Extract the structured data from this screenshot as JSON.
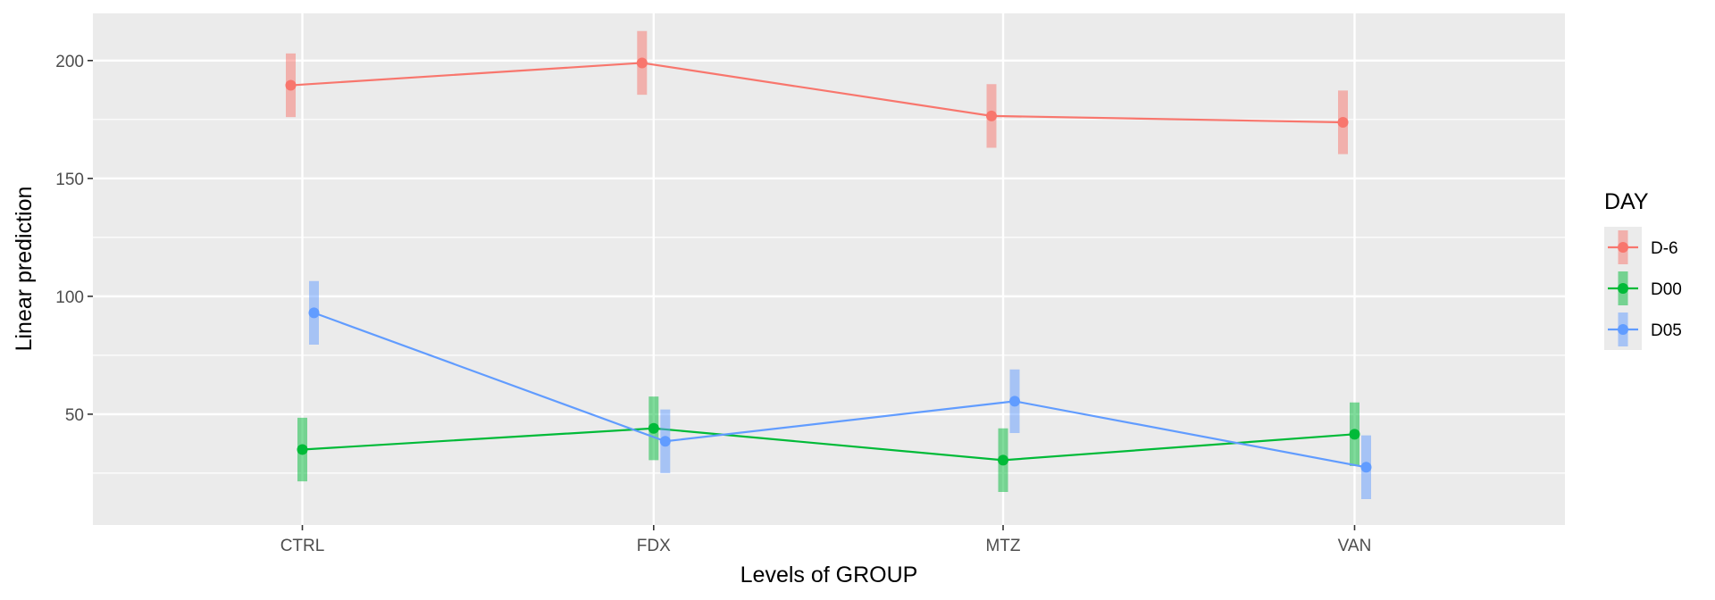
{
  "chart_data": {
    "type": "line",
    "xlabel": "Levels of GROUP",
    "ylabel": "Linear prediction",
    "categories": [
      "CTRL",
      "FDX",
      "MTZ",
      "VAN"
    ],
    "ylim": [
      3,
      220
    ],
    "yticks": [
      50,
      100,
      150,
      200
    ],
    "grid": true,
    "legend": {
      "title": "DAY",
      "position": "right"
    },
    "series": [
      {
        "name": "D-6",
        "color": "#F8766D",
        "values": [
          189.5,
          199,
          176.5,
          173.8
        ],
        "lower": [
          176,
          185.5,
          163,
          160.3
        ],
        "upper": [
          203,
          212.5,
          190,
          187.3
        ]
      },
      {
        "name": "D00",
        "color": "#00BA38",
        "values": [
          35,
          44,
          30.5,
          41.5
        ],
        "lower": [
          21.5,
          30.5,
          17,
          28
        ],
        "upper": [
          48.5,
          57.5,
          44,
          55
        ]
      },
      {
        "name": "D05",
        "color": "#619CFF",
        "values": [
          93,
          38.5,
          55.5,
          27.5
        ],
        "lower": [
          79.5,
          25,
          42,
          14
        ],
        "upper": [
          106.5,
          52,
          69,
          41
        ]
      }
    ]
  }
}
